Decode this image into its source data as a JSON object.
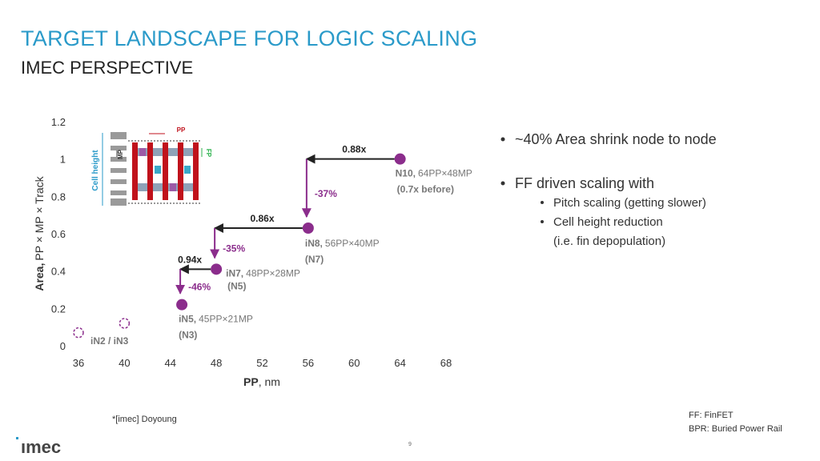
{
  "header": {
    "title": "TARGET LANDSCAPE FOR LOGIC SCALING",
    "subtitle": "IMEC PERSPECTIVE"
  },
  "chart_data": {
    "type": "scatter",
    "xlabel_bold": "PP",
    "xlabel": ", nm",
    "ylabel_bold": "Area,",
    "ylabel": "PP × MP × Track",
    "xlim": [
      36,
      68
    ],
    "xticks": [
      36,
      40,
      44,
      48,
      52,
      56,
      60,
      64,
      68
    ],
    "ylim": [
      0,
      1.2
    ],
    "yticks": [
      0,
      0.2,
      0.4,
      0.6,
      0.8,
      1,
      1.2
    ],
    "series": [
      {
        "color": "#8b2d8c",
        "marker": "filled",
        "x": [
          64,
          56,
          48,
          45
        ],
        "values": [
          1.0,
          0.63,
          0.41,
          0.22
        ],
        "point_labels": [
          [
            "N10,",
            "64PP×48MP",
            "(0.7x before)"
          ],
          [
            "iN8,",
            "56PP×40MP",
            "(N7)"
          ],
          [
            "iN7,",
            "48PP×28MP",
            "(N5)"
          ],
          [
            "iN5,",
            "45PP×21MP",
            "(N3)"
          ]
        ]
      },
      {
        "color": "#8b2d8c",
        "marker": "open",
        "x": [
          36,
          40
        ],
        "values": [
          0.07,
          0.12
        ],
        "group_label": "iN2 / iN3"
      }
    ],
    "steps": [
      {
        "ratio": "0.88x",
        "reduction": "-37%"
      },
      {
        "ratio": "0.86x",
        "reduction": "-35%"
      },
      {
        "ratio": "0.94x",
        "reduction": "-46%"
      }
    ],
    "inset": {
      "pp": "PP",
      "fp": "FP",
      "mp": "MP",
      "cell_height": "Cell height"
    }
  },
  "bullets": [
    "~40% Area shrink node to node",
    "FF driven scaling with"
  ],
  "sub_bullets": [
    "Pitch scaling (getting slower)",
    "Cell height reduction",
    "(i.e. fin depopulation)"
  ],
  "footnote": "*[imec] Doyoung",
  "abbreviations": [
    "FF: FinFET",
    "BPR: Buried Power Rail"
  ],
  "page_number": "9",
  "logo": "ımec"
}
